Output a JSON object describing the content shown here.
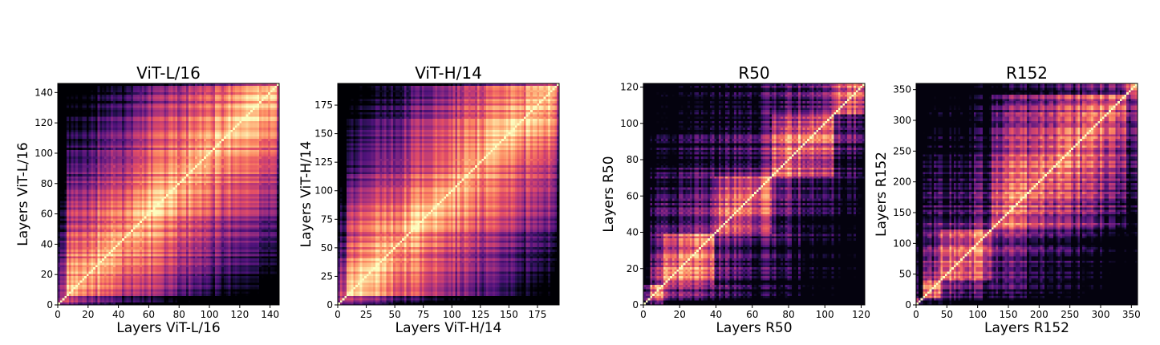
{
  "chart_data": [
    {
      "type": "heatmap",
      "title": "ViT-L/16",
      "xlabel": "Layers ViT-L/16",
      "ylabel": "Layers ViT-L/16",
      "n_layers": 146,
      "xlim": [
        0,
        146
      ],
      "ylim": [
        0,
        146
      ],
      "xticks": [
        0,
        20,
        40,
        60,
        80,
        100,
        120,
        140
      ],
      "yticks": [
        0,
        20,
        40,
        60,
        80,
        100,
        120,
        140
      ],
      "colormap": "magma",
      "pattern": "vit"
    },
    {
      "type": "heatmap",
      "title": "ViT-H/14",
      "xlabel": "Layers ViT-H/14",
      "ylabel": "Layers ViT-H/14",
      "n_layers": 194,
      "xlim": [
        0,
        194
      ],
      "ylim": [
        0,
        194
      ],
      "xticks": [
        0,
        25,
        50,
        75,
        100,
        125,
        150,
        175
      ],
      "yticks": [
        0,
        25,
        50,
        75,
        100,
        125,
        150,
        175
      ],
      "colormap": "magma",
      "pattern": "vit"
    },
    {
      "type": "heatmap",
      "title": "R50",
      "xlabel": "Layers R50",
      "ylabel": "Layers R50",
      "n_layers": 122,
      "xlim": [
        0,
        122
      ],
      "ylim": [
        0,
        122
      ],
      "xticks": [
        0,
        20,
        40,
        60,
        80,
        100,
        120
      ],
      "yticks": [
        0,
        20,
        40,
        60,
        80,
        100,
        120
      ],
      "colormap": "magma",
      "pattern": "resnet",
      "stage_boundaries": [
        10,
        38,
        70,
        104,
        122
      ]
    },
    {
      "type": "heatmap",
      "title": "R152",
      "xlabel": "Layers R152",
      "ylabel": "Layers R152",
      "n_layers": 360,
      "xlim": [
        0,
        360
      ],
      "ylim": [
        0,
        360
      ],
      "xticks": [
        0,
        50,
        100,
        150,
        200,
        250,
        300,
        350
      ],
      "yticks": [
        0,
        50,
        100,
        150,
        200,
        250,
        300,
        350
      ],
      "colormap": "magma",
      "pattern": "resnet",
      "stage_boundaries": [
        10,
        38,
        120,
        340,
        360
      ]
    }
  ]
}
